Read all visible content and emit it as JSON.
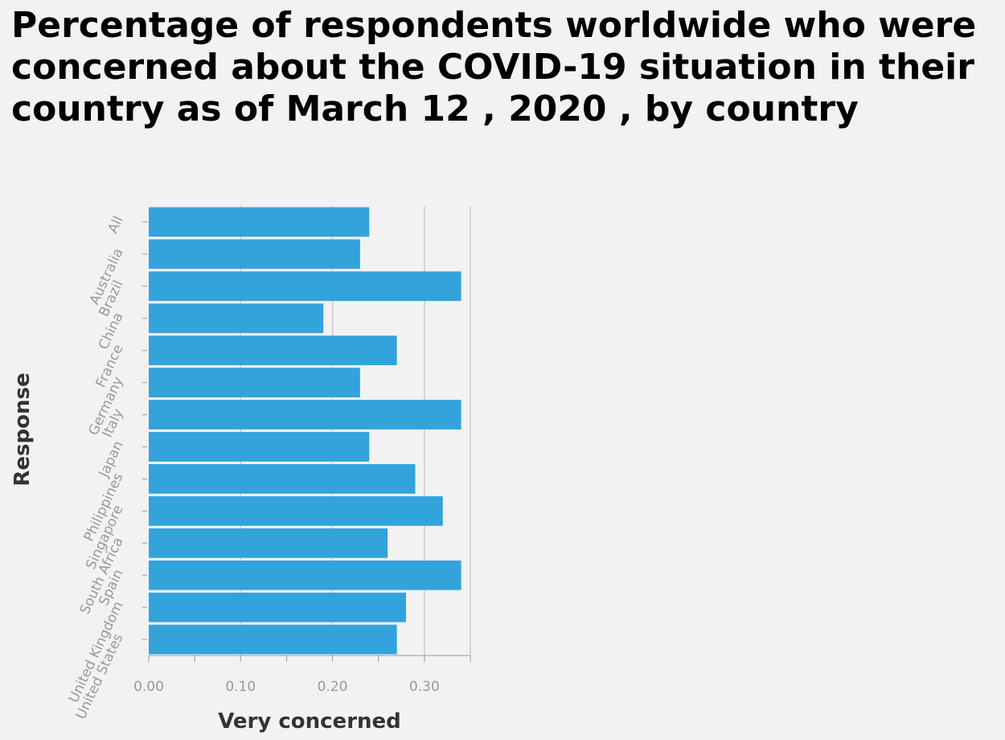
{
  "chart_data": {
    "type": "bar",
    "orientation": "horizontal",
    "title": "Percentage of respondents worldwide who were concerned about the COVID-19 situation in their country as of March 12 , 2020 , by country",
    "xlabel": "Very concerned",
    "ylabel": "Response",
    "categories": [
      "All",
      "Australia",
      "Brazil",
      "China",
      "France",
      "Germany",
      "Italy",
      "Japan",
      "Philippines",
      "Singapore",
      "South Africa",
      "Spain",
      "United Kingdom",
      "United States"
    ],
    "values": [
      0.24,
      0.23,
      0.34,
      0.19,
      0.27,
      0.23,
      0.34,
      0.24,
      0.29,
      0.32,
      0.26,
      0.34,
      0.28,
      0.27
    ],
    "xlim": [
      0,
      0.35
    ],
    "xticks": [
      0,
      0.1,
      0.2,
      0.3
    ],
    "xtick_labels": [
      "0.00",
      "0.10",
      "0.20",
      "0.30"
    ],
    "bar_color": "#33a3dc",
    "grid": "vertical",
    "legend": "none"
  }
}
